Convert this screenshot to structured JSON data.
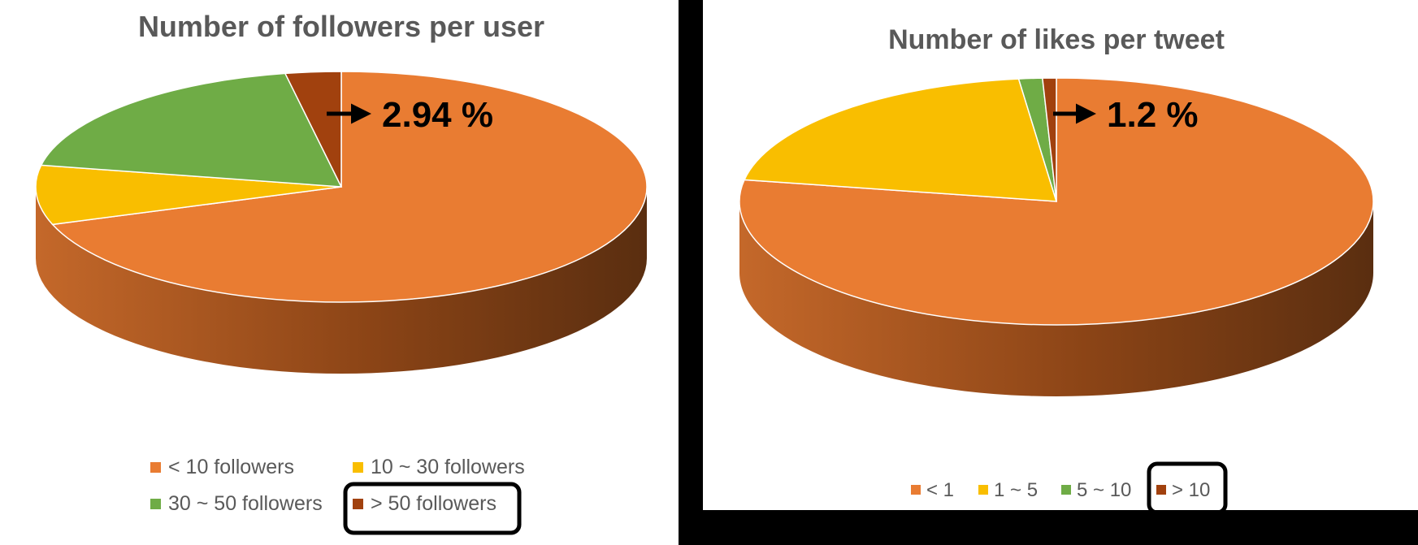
{
  "chart_data": [
    {
      "type": "pie",
      "title": "Number of followers per user",
      "categories": [
        "< 10 followers",
        "10 ~ 30 followers",
        "30 ~ 50 followers",
        "> 50 followers"
      ],
      "values": [
        69.7,
        8.3,
        19.06,
        2.94
      ],
      "unit": "%",
      "colors": [
        "#E97C32",
        "#F9BE00",
        "#6FAC46",
        "#A1410E"
      ],
      "annotation": {
        "text": "2.94 %",
        "category": "> 50 followers"
      },
      "highlighted_legend": "> 50 followers",
      "legend_position": "bottom",
      "style": "3d"
    },
    {
      "type": "pie",
      "title": "Number of likes per tweet",
      "categories": [
        "< 1",
        "1 ~ 5",
        "5 ~ 10",
        "> 10"
      ],
      "values": [
        77.8,
        20.3,
        1.2,
        0.7
      ],
      "unit": "%",
      "colors": [
        "#E97C32",
        "#F9BE00",
        "#6FAC46",
        "#A1410E"
      ],
      "annotation": {
        "text": "1.2 %",
        "category": "5 ~ 10"
      },
      "highlighted_legend": "> 10",
      "legend_position": "bottom",
      "style": "3d"
    }
  ]
}
